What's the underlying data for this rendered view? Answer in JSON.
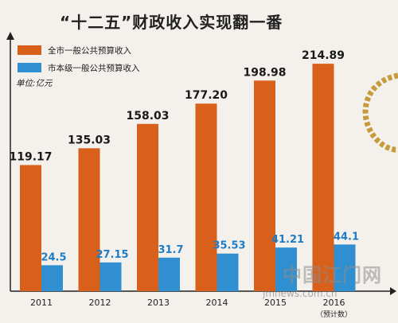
{
  "title": "“十二五”财政收入实现翻一番",
  "legend": [
    {
      "label": "全市一般公共预算收入",
      "color": "#d9601a"
    },
    {
      "label": "市本级一般公共预算收入",
      "color": "#2f8fd0"
    }
  ],
  "unit": "单位:亿元",
  "watermark": {
    "cn": "中国江门网",
    "url": "jmnews.com.cn"
  },
  "chart_data": {
    "type": "bar",
    "categories": [
      "2011",
      "2012",
      "2013",
      "2014",
      "2015",
      "2016"
    ],
    "category_note": {
      "index": 5,
      "text": "（预计数）"
    },
    "series": [
      {
        "name": "全市一般公共预算收入",
        "values": [
          119.17,
          135.03,
          158.03,
          177.2,
          198.98,
          214.89
        ],
        "labels": [
          "119.17",
          "135.03",
          "158.03",
          "177.20",
          "198.98",
          "214.89"
        ],
        "color": "#d9601a"
      },
      {
        "name": "市本级一般公共预算收入",
        "values": [
          24.5,
          27.15,
          31.7,
          35.53,
          41.21,
          44.1
        ],
        "labels": [
          "24.5",
          "27.15",
          "31.7",
          "35.53",
          "41.21",
          "44.1"
        ],
        "color": "#2f8fd0"
      }
    ],
    "ylim": [
      0,
      230
    ],
    "grid": false
  }
}
